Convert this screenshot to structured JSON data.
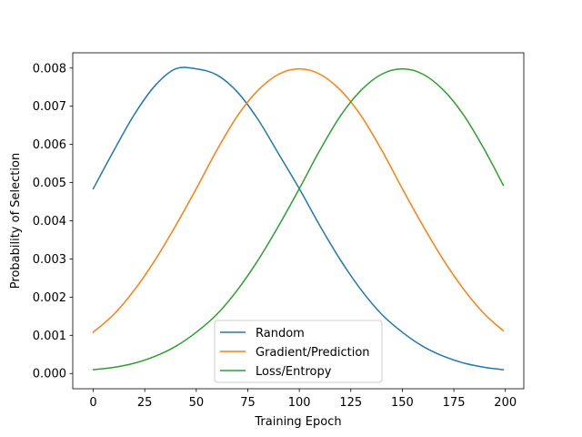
{
  "chart_data": {
    "type": "line",
    "title": "",
    "xlabel": "Training Epoch",
    "ylabel": "Probability of Selection",
    "xlim": [
      -9.95,
      208.95
    ],
    "ylim": [
      -0.0004,
      0.0084
    ],
    "xticks": [
      0,
      25,
      50,
      75,
      100,
      125,
      150,
      175,
      200
    ],
    "xtick_labels": [
      "0",
      "25",
      "50",
      "75",
      "100",
      "125",
      "150",
      "175",
      "200"
    ],
    "yticks": [
      0.0,
      0.001,
      0.002,
      0.003,
      0.004,
      0.005,
      0.006,
      0.007,
      0.008
    ],
    "ytick_labels": [
      "0.000",
      "0.001",
      "0.002",
      "0.003",
      "0.004",
      "0.005",
      "0.006",
      "0.007",
      "0.008"
    ],
    "grid": false,
    "legend": {
      "position": "lower center"
    },
    "series": [
      {
        "name": "Random",
        "color": "#1f77b4",
        "x": [
          0,
          10,
          20,
          30,
          40,
          50,
          60,
          70,
          80,
          90,
          100,
          110,
          120,
          130,
          140,
          150,
          160,
          170,
          180,
          190,
          199
        ],
        "y": [
          0.00484,
          0.00584,
          0.00679,
          0.00754,
          0.00798,
          0.00798,
          0.00782,
          0.00737,
          0.00665,
          0.00575,
          0.00484,
          0.00387,
          0.00297,
          0.00219,
          0.00155,
          0.00108,
          0.00071,
          0.00045,
          0.00027,
          0.00016,
          0.0001
        ]
      },
      {
        "name": "Gradient/Prediction",
        "color": "#ff7f0e",
        "x": [
          0,
          10,
          20,
          30,
          40,
          50,
          60,
          70,
          80,
          90,
          100,
          110,
          120,
          130,
          140,
          150,
          160,
          170,
          180,
          190,
          199
        ],
        "y": [
          0.00108,
          0.00155,
          0.00219,
          0.00297,
          0.00387,
          0.00484,
          0.00585,
          0.00675,
          0.00742,
          0.00784,
          0.00798,
          0.00784,
          0.00742,
          0.00675,
          0.00585,
          0.00484,
          0.00387,
          0.00297,
          0.00219,
          0.00155,
          0.00112
        ]
      },
      {
        "name": "Loss/Entropy",
        "color": "#2ca02c",
        "x": [
          0,
          10,
          20,
          30,
          40,
          50,
          60,
          70,
          80,
          90,
          100,
          110,
          120,
          130,
          140,
          150,
          160,
          170,
          180,
          190,
          199
        ],
        "y": [
          0.0001,
          0.00016,
          0.00027,
          0.00045,
          0.00071,
          0.00108,
          0.00155,
          0.00219,
          0.00297,
          0.00387,
          0.00484,
          0.00585,
          0.00675,
          0.00742,
          0.00784,
          0.00798,
          0.00784,
          0.00742,
          0.00675,
          0.00585,
          0.00493
        ]
      }
    ]
  }
}
